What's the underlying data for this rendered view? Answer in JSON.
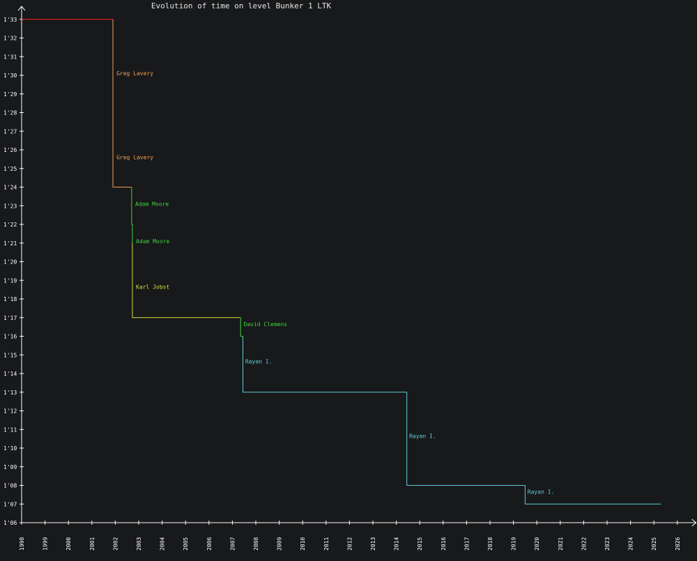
{
  "chart_data": {
    "type": "line",
    "title": "Evolution of time on level Bunker 1 LTK",
    "xlabel": "",
    "ylabel": "",
    "x_axis": {
      "type": "year",
      "range": [
        1998,
        2026.8
      ],
      "tick_labels": [
        "1998",
        "1999",
        "2000",
        "2001",
        "2002",
        "2003",
        "2004",
        "2005",
        "2006",
        "2007",
        "2008",
        "2009",
        "2010",
        "2011",
        "2012",
        "2013",
        "2014",
        "2015",
        "2016",
        "2017",
        "2018",
        "2019",
        "2020",
        "2021",
        "2022",
        "2023",
        "2024",
        "2025",
        "2026"
      ]
    },
    "y_axis": {
      "unit": "seconds",
      "range": [
        66,
        93.7
      ],
      "tick_labels": [
        "1'06",
        "1'07",
        "1'08",
        "1'09",
        "1'10",
        "1'11",
        "1'12",
        "1'13",
        "1'14",
        "1'15",
        "1'16",
        "1'17",
        "1'18",
        "1'19",
        "1'20",
        "1'21",
        "1'22",
        "1'23",
        "1'24",
        "1'25",
        "1'26",
        "1'27",
        "1'28",
        "1'29",
        "1'30",
        "1'31",
        "1'32",
        "1'33"
      ]
    },
    "grid": false,
    "legend": "none",
    "colors": {
      "background": "#18191b",
      "axis": "#ffffff",
      "title": "#e6e6e6"
    },
    "series": [
      {
        "color": "#ff2020",
        "points": [
          [
            1998.0,
            93
          ],
          [
            2001.9,
            93
          ]
        ]
      },
      {
        "color": "#f0a050",
        "points": [
          [
            2001.9,
            93
          ],
          [
            2001.9,
            84
          ],
          [
            2002.7,
            84
          ]
        ]
      },
      {
        "color": "#3ad83a",
        "points": [
          [
            2002.7,
            84
          ],
          [
            2002.7,
            82
          ],
          [
            2002.73,
            82
          ],
          [
            2002.73,
            81
          ]
        ]
      },
      {
        "color": "#d8e038",
        "points": [
          [
            2002.73,
            81
          ],
          [
            2002.73,
            77
          ],
          [
            2007.35,
            77
          ]
        ]
      },
      {
        "color": "#3ad83a",
        "points": [
          [
            2007.35,
            77
          ],
          [
            2007.35,
            76
          ],
          [
            2007.45,
            76
          ]
        ]
      },
      {
        "color": "#5ed0d8",
        "points": [
          [
            2007.45,
            76
          ],
          [
            2007.45,
            73
          ],
          [
            2014.45,
            73
          ],
          [
            2014.45,
            68
          ],
          [
            2019.5,
            68
          ],
          [
            2019.5,
            67
          ],
          [
            2025.3,
            67
          ]
        ]
      }
    ],
    "annotations": [
      {
        "text": "Greg Lavery",
        "x": 2002.05,
        "y": 90.0,
        "color": "#f0a050"
      },
      {
        "text": "Greg Lavery",
        "x": 2002.05,
        "y": 85.5,
        "color": "#f0a050"
      },
      {
        "text": "Adam Moore",
        "x": 2002.85,
        "y": 83.0,
        "color": "#3ad83a"
      },
      {
        "text": "Adam Moore",
        "x": 2002.88,
        "y": 81.0,
        "color": "#3ad83a"
      },
      {
        "text": "Karl Jobst",
        "x": 2002.88,
        "y": 78.55,
        "color": "#d8e038"
      },
      {
        "text": "David Clemens",
        "x": 2007.48,
        "y": 76.55,
        "color": "#3ad83a"
      },
      {
        "text": "Rayan I.",
        "x": 2007.55,
        "y": 74.55,
        "color": "#5ed0d8"
      },
      {
        "text": "Rayan I.",
        "x": 2014.55,
        "y": 70.55,
        "color": "#5ed0d8"
      },
      {
        "text": "Rayan I.",
        "x": 2019.6,
        "y": 67.55,
        "color": "#5ed0d8"
      }
    ]
  }
}
